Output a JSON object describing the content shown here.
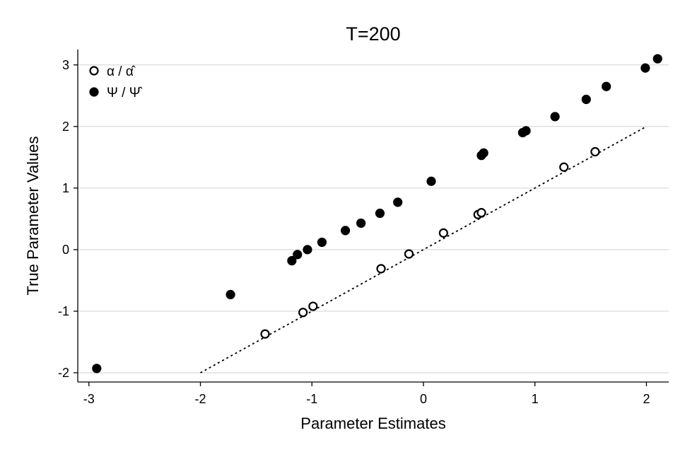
{
  "chart_data": {
    "type": "scatter",
    "title": "T=200",
    "xlabel": "Parameter Estimates",
    "ylabel": "True Parameter Values",
    "xlim": [
      -3.1,
      2.2
    ],
    "ylim": [
      -2.15,
      3.25
    ],
    "xticks": [
      -3,
      -2,
      -1,
      0,
      1,
      2
    ],
    "yticks": [
      -2,
      -1,
      0,
      1,
      2,
      3
    ],
    "grid": "horizontal",
    "legend_position": "top-left",
    "reference_line": {
      "style": "dotted",
      "x": [
        -2,
        2
      ],
      "y": [
        -2,
        2
      ]
    },
    "series": [
      {
        "name": "α / α̂",
        "marker": "open-circle",
        "points": [
          [
            -1.42,
            -1.37
          ],
          [
            -1.08,
            -1.02
          ],
          [
            -0.99,
            -0.92
          ],
          [
            -0.38,
            -0.31
          ],
          [
            -0.13,
            -0.07
          ],
          [
            0.18,
            0.27
          ],
          [
            0.49,
            0.57
          ],
          [
            0.52,
            0.6
          ],
          [
            1.26,
            1.34
          ],
          [
            1.54,
            1.59
          ]
        ]
      },
      {
        "name": "Ψ / Ψ̂",
        "marker": "filled-circle",
        "points": [
          [
            -2.93,
            -1.93
          ],
          [
            -1.73,
            -0.73
          ],
          [
            -1.18,
            -0.18
          ],
          [
            -1.13,
            -0.08
          ],
          [
            -1.04,
            0.0
          ],
          [
            -0.91,
            0.12
          ],
          [
            -0.7,
            0.31
          ],
          [
            -0.56,
            0.43
          ],
          [
            -0.39,
            0.59
          ],
          [
            -0.23,
            0.77
          ],
          [
            0.07,
            1.11
          ],
          [
            0.52,
            1.53
          ],
          [
            0.54,
            1.57
          ],
          [
            0.89,
            1.9
          ],
          [
            0.92,
            1.93
          ],
          [
            1.18,
            2.16
          ],
          [
            1.46,
            2.44
          ],
          [
            1.64,
            2.65
          ],
          [
            1.99,
            2.95
          ],
          [
            2.1,
            3.1
          ]
        ]
      }
    ]
  }
}
